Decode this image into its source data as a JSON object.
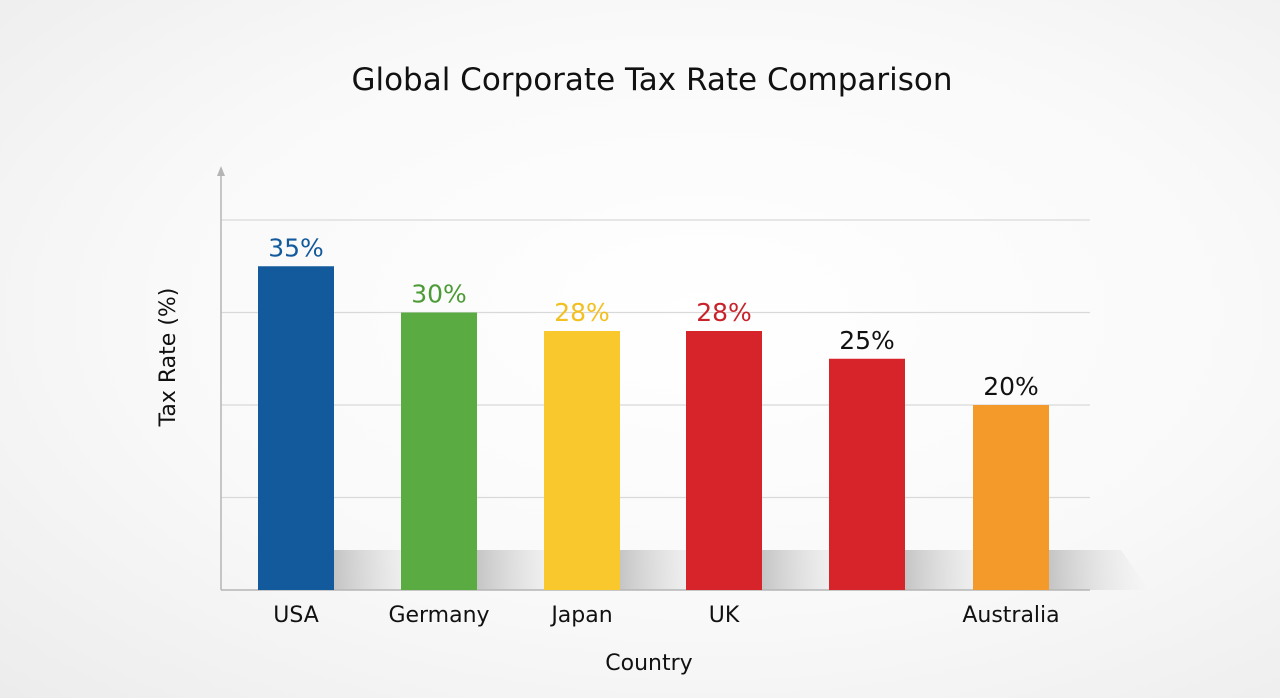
{
  "chart_data": {
    "type": "bar",
    "title": "Global Corporate Tax Rate Comparison",
    "xlabel": "Country",
    "ylabel": "Tax Rate (%)",
    "categories": [
      "USA",
      "Germany",
      "Japan",
      "UK",
      "",
      "Australia"
    ],
    "values": [
      35,
      30,
      28,
      28,
      25,
      20
    ],
    "value_labels": [
      "35%",
      "30%",
      "28%",
      "28%",
      "25%",
      "20%"
    ],
    "colors": [
      "#135a9c",
      "#5aac42",
      "#f8c82c",
      "#d6242a",
      "#d6242a",
      "#f39a2a"
    ],
    "label_colors": [
      "#135a9c",
      "#4d9b36",
      "#f2c021",
      "#c8232a",
      "#111111",
      "#111111"
    ],
    "ylim": [
      0,
      40
    ],
    "grid": true,
    "legend": "none"
  }
}
